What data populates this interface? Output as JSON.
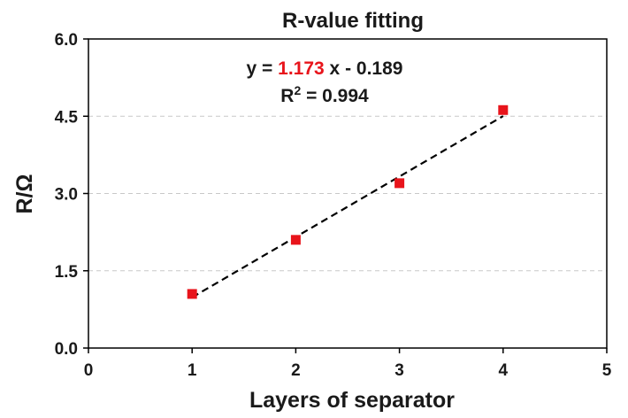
{
  "chart_data": {
    "type": "scatter",
    "title": "R-value fitting",
    "xlabel": "Layers of separator",
    "ylabel": "R/Ω",
    "xlim": [
      0,
      5
    ],
    "ylim": [
      0,
      6
    ],
    "x_ticks": [
      "0",
      "1",
      "2",
      "3",
      "4",
      "5"
    ],
    "y_ticks": [
      "0.0",
      "1.5",
      "3.0",
      "4.5",
      "6.0"
    ],
    "grid": "horizontal dashed",
    "series": [
      {
        "x": [
          1,
          2,
          3,
          4
        ],
        "y": [
          1.05,
          2.1,
          3.2,
          4.62
        ],
        "color": "#e8141b",
        "marker": "square"
      }
    ],
    "fit_line": {
      "slope": 1.173,
      "intercept": -0.189,
      "x_range": [
        1,
        4
      ],
      "style": "dashed",
      "color": "#000000"
    },
    "annotation": {
      "eq_prefix": "y = ",
      "eq_slope": "1.173",
      "eq_suffix": " x - 0.189",
      "slope_color": "#e8141b",
      "r2_base": "R",
      "r2_sup": "2",
      "r2_value": " = 0.994"
    }
  }
}
